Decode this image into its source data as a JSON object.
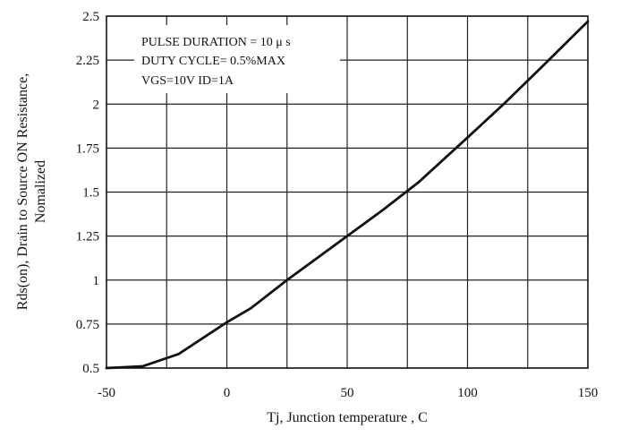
{
  "chart_data": {
    "type": "line",
    "title": "",
    "xlabel": "Tj, Junction temperature , C",
    "ylabel_lines": [
      "Rds(on), Drain to Source ON  Resistance,",
      "Nomalized"
    ],
    "xlim": [
      -50,
      150
    ],
    "ylim": [
      0.5,
      2.5
    ],
    "x_ticks": [
      -50,
      0,
      50,
      100,
      150
    ],
    "x_grid": [
      -50,
      -25,
      0,
      25,
      50,
      75,
      100,
      125,
      150
    ],
    "y_ticks": [
      0.5,
      0.75,
      1,
      1.25,
      1.5,
      1.75,
      2,
      2.25,
      2.5
    ],
    "y_tick_labels": [
      "0.5",
      "0.75",
      "1",
      "1.25",
      "1.5",
      "1.75",
      "2",
      "2.25",
      "2.5"
    ],
    "x_tick_labels": [
      "-50",
      "0",
      "50",
      "100",
      "150"
    ],
    "grid": true,
    "series": [
      {
        "x": [
          -50,
          -35,
          -20,
          -10,
          0,
          10,
          25,
          50,
          65,
          80,
          100,
          115,
          130,
          150
        ],
        "values": [
          0.5,
          0.51,
          0.58,
          0.67,
          0.76,
          0.84,
          1.0,
          1.25,
          1.4,
          1.56,
          1.81,
          2.0,
          2.2,
          2.47
        ]
      }
    ],
    "annotation_lines": [
      "PULSE    DURATION = 10 μ s",
      "DUTY    CYCLE= 0.5%MAX",
      "VGS=10V    ID=1A"
    ],
    "colors": {
      "line": "#111111",
      "grid": "#222222",
      "background": "#ffffff"
    }
  }
}
